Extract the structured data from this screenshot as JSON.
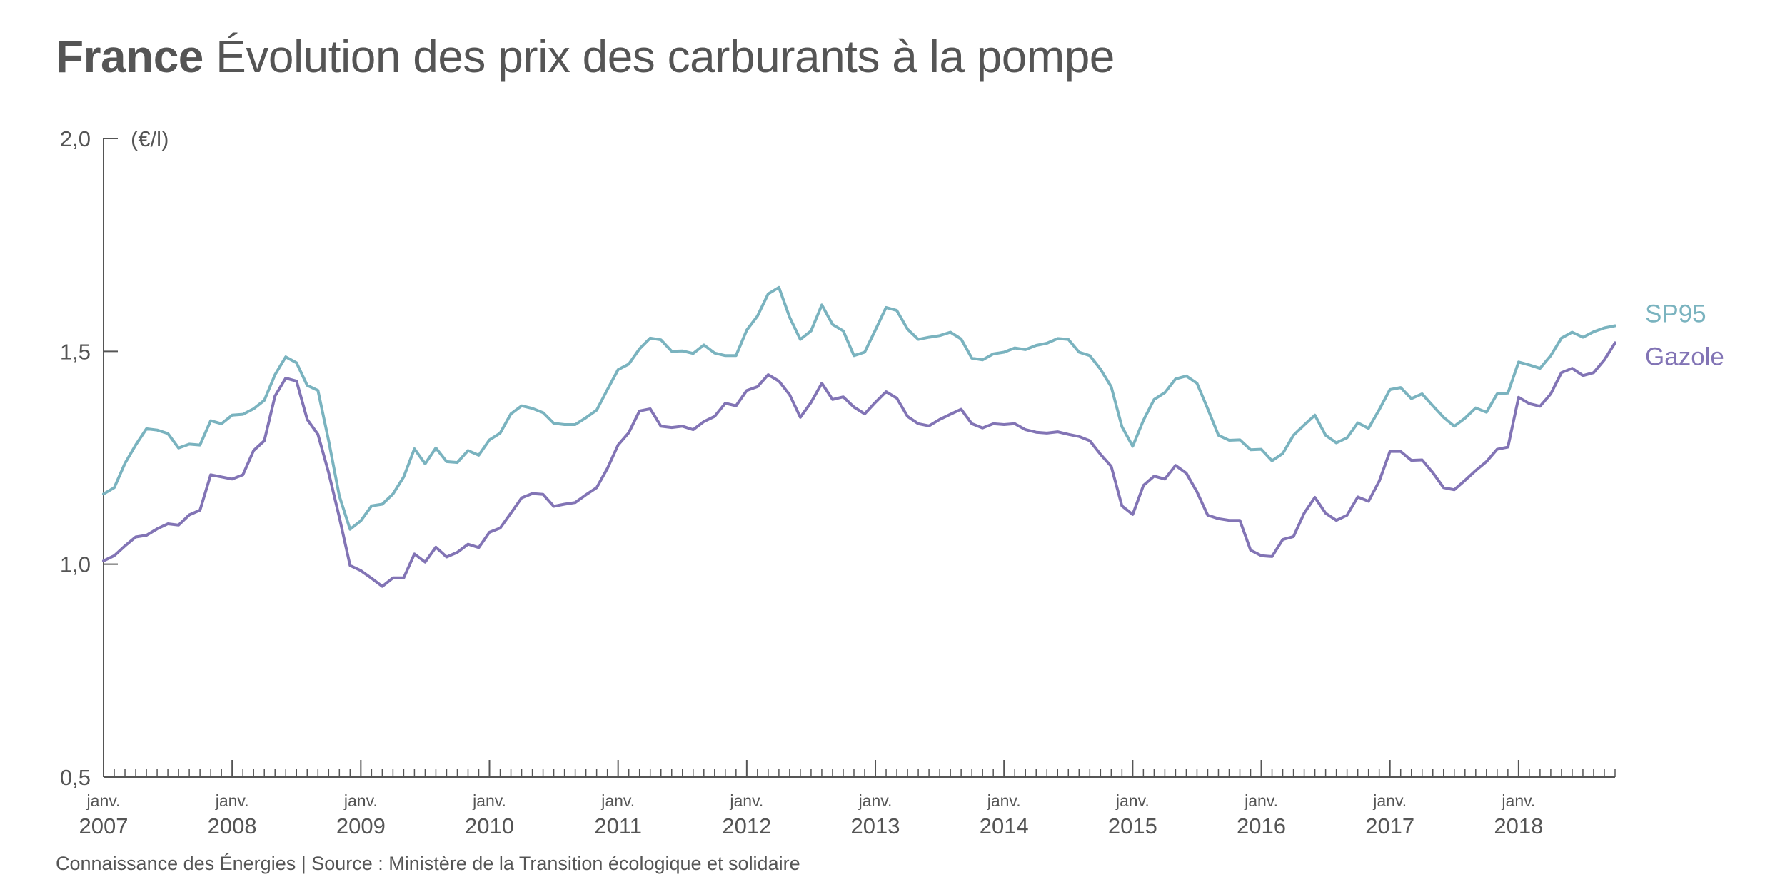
{
  "header": {
    "title_bold": "France",
    "title_rest": "Évolution des prix des carburants à la pompe"
  },
  "footer": {
    "source": "Connaissance des Énergies | Source : Ministère de la Transition écologique et solidaire"
  },
  "colors": {
    "sp95": "#7ab3bf",
    "gazole": "#8274b5",
    "axis": "#555555",
    "text": "#555555"
  },
  "chart_data": {
    "type": "line",
    "title": "Évolution des prix des carburants à la pompe",
    "ylabel": "(€/l)",
    "xlabel": "",
    "ylim": [
      0.5,
      2.0
    ],
    "yticks": [
      0.5,
      1.0,
      1.5,
      2.0
    ],
    "ytick_labels": [
      "0,5",
      "1,0",
      "1,5",
      "2,0"
    ],
    "xlim": [
      2007.0,
      2018.75
    ],
    "x_start": 2007.0,
    "x_step": 0.08333,
    "grid": false,
    "xtick_month_label": "janv.",
    "xtick_years": [
      "2007",
      "2008",
      "2009",
      "2010",
      "2011",
      "2012",
      "2013",
      "2014",
      "2015",
      "2016",
      "2017",
      "2018"
    ],
    "series": [
      {
        "name": "SP95",
        "label_position": "end",
        "values": [
          1.165,
          1.18,
          1.237,
          1.28,
          1.318,
          1.315,
          1.307,
          1.273,
          1.282,
          1.28,
          1.337,
          1.33,
          1.35,
          1.352,
          1.365,
          1.385,
          1.445,
          1.487,
          1.473,
          1.42,
          1.408,
          1.29,
          1.16,
          1.082,
          1.102,
          1.137,
          1.141,
          1.165,
          1.205,
          1.271,
          1.236,
          1.273,
          1.241,
          1.239,
          1.267,
          1.256,
          1.292,
          1.308,
          1.353,
          1.372,
          1.366,
          1.356,
          1.331,
          1.328,
          1.328,
          1.344,
          1.362,
          1.41,
          1.457,
          1.47,
          1.506,
          1.531,
          1.527,
          1.5,
          1.501,
          1.495,
          1.515,
          1.496,
          1.49,
          1.49,
          1.55,
          1.583,
          1.635,
          1.65,
          1.58,
          1.528,
          1.548,
          1.609,
          1.563,
          1.548,
          1.49,
          1.498,
          1.55,
          1.603,
          1.596,
          1.552,
          1.528,
          1.533,
          1.537,
          1.545,
          1.529,
          1.484,
          1.48,
          1.494,
          1.498,
          1.508,
          1.504,
          1.514,
          1.519,
          1.53,
          1.528,
          1.498,
          1.49,
          1.458,
          1.417,
          1.323,
          1.277,
          1.338,
          1.387,
          1.403,
          1.435,
          1.442,
          1.425,
          1.365,
          1.303,
          1.291,
          1.292,
          1.269,
          1.27,
          1.243,
          1.26,
          1.303,
          1.327,
          1.35,
          1.303,
          1.285,
          1.297,
          1.332,
          1.319,
          1.363,
          1.41,
          1.415,
          1.389,
          1.4,
          1.372,
          1.345,
          1.324,
          1.343,
          1.367,
          1.357,
          1.4,
          1.402,
          1.475,
          1.468,
          1.46,
          1.49,
          1.531,
          1.545,
          1.533,
          1.546,
          1.555,
          1.56
        ]
      },
      {
        "name": "Gazole",
        "label_position": "end",
        "values": [
          1.008,
          1.02,
          1.043,
          1.064,
          1.068,
          1.083,
          1.095,
          1.092,
          1.116,
          1.127,
          1.21,
          1.205,
          1.2,
          1.21,
          1.267,
          1.29,
          1.395,
          1.437,
          1.43,
          1.34,
          1.305,
          1.215,
          1.11,
          0.997,
          0.985,
          0.967,
          0.948,
          0.968,
          0.968,
          1.024,
          1.005,
          1.04,
          1.017,
          1.028,
          1.047,
          1.039,
          1.075,
          1.085,
          1.12,
          1.156,
          1.166,
          1.164,
          1.136,
          1.141,
          1.145,
          1.163,
          1.18,
          1.225,
          1.28,
          1.309,
          1.36,
          1.365,
          1.324,
          1.321,
          1.324,
          1.316,
          1.335,
          1.347,
          1.378,
          1.372,
          1.408,
          1.417,
          1.445,
          1.43,
          1.398,
          1.345,
          1.38,
          1.425,
          1.387,
          1.393,
          1.369,
          1.353,
          1.38,
          1.405,
          1.39,
          1.347,
          1.33,
          1.325,
          1.34,
          1.352,
          1.364,
          1.33,
          1.32,
          1.33,
          1.328,
          1.33,
          1.316,
          1.31,
          1.308,
          1.311,
          1.305,
          1.3,
          1.29,
          1.258,
          1.23,
          1.137,
          1.117,
          1.185,
          1.207,
          1.2,
          1.232,
          1.214,
          1.17,
          1.115,
          1.107,
          1.103,
          1.103,
          1.033,
          1.02,
          1.018,
          1.058,
          1.065,
          1.12,
          1.157,
          1.12,
          1.103,
          1.115,
          1.158,
          1.148,
          1.195,
          1.265,
          1.265,
          1.244,
          1.245,
          1.215,
          1.18,
          1.175,
          1.197,
          1.22,
          1.241,
          1.27,
          1.275,
          1.392,
          1.377,
          1.371,
          1.4,
          1.45,
          1.46,
          1.443,
          1.45,
          1.48,
          1.52
        ]
      }
    ]
  }
}
